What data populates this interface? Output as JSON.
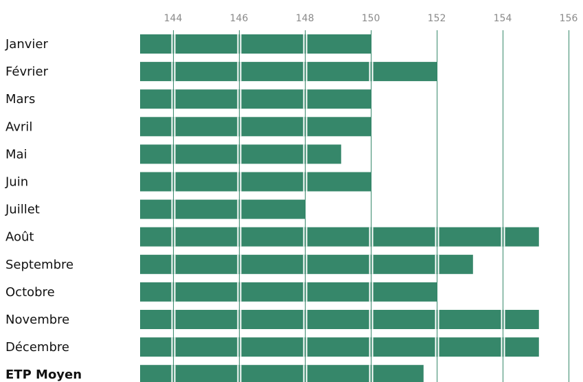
{
  "chart_data": {
    "type": "bar",
    "orientation": "horizontal",
    "title": "",
    "xlabel": "",
    "ylabel": "",
    "xlim": [
      143,
      156.4
    ],
    "x_ticks": [
      144,
      146,
      148,
      150,
      152,
      154,
      156
    ],
    "categories": [
      "Janvier",
      "Février",
      "Mars",
      "Avril",
      "Mai",
      "Juin",
      "Juillet",
      "Août",
      "Septembre",
      "Octobre",
      "Novembre",
      "Décembre",
      "ETP Moyen"
    ],
    "values": [
      150,
      152,
      150,
      150,
      149.1,
      150,
      148,
      155.1,
      153.1,
      152,
      155.1,
      155.1,
      151.6
    ],
    "emphasized_category": "ETP Moyen",
    "grid": true,
    "legend": "none",
    "colors": {
      "bar": "#36876a",
      "grid": "#36876a",
      "tick_text": "#8a8a8a",
      "label_text": "#111111"
    }
  }
}
